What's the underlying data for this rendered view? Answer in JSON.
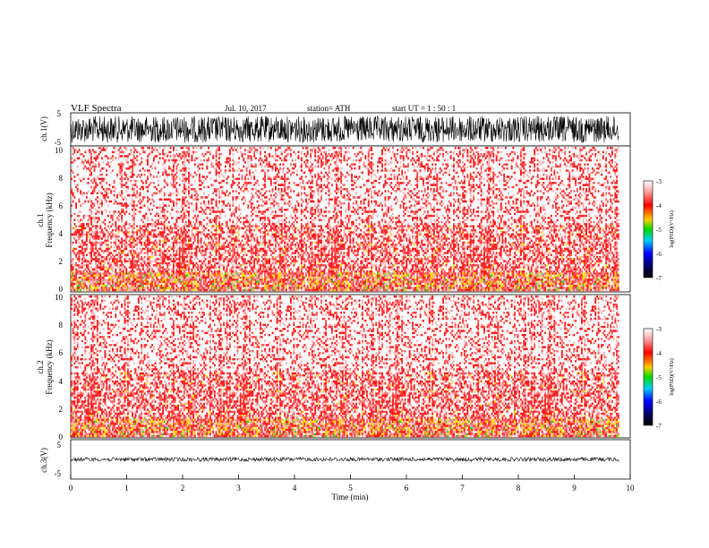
{
  "header": {
    "title": "VLF  Spectra",
    "date": "Jul.  10, 2017",
    "station": "station= ATH",
    "start_ut": "start  UT  =    1 : 50 : 1"
  },
  "chart_data": [
    {
      "type": "line",
      "panel": "ch1-waveform",
      "ylabel": "ch.1(V)",
      "ylim": [
        -5,
        5
      ],
      "yticks": [
        "5",
        "-5"
      ],
      "xlim": [
        0,
        10
      ],
      "envelope": [
        -4,
        4
      ],
      "color": "#000000"
    },
    {
      "type": "heatmap",
      "panel": "ch1-spectrogram",
      "ylabel_channel": "ch.1",
      "ylabel": "Frequency (kHz)",
      "ylim": [
        0,
        10
      ],
      "yticks": [
        "0",
        "2",
        "4",
        "6",
        "8",
        "10"
      ],
      "xlim": [
        0,
        9.8
      ],
      "colorbar": {
        "label": "log(PSD)(V²/Hz)",
        "range": [
          -7,
          -3
        ],
        "ticks": [
          "-3",
          "-4",
          "-5",
          "-6",
          "-7"
        ]
      }
    },
    {
      "type": "heatmap",
      "panel": "ch2-spectrogram",
      "ylabel_channel": "ch.2",
      "ylabel": "Frequency (kHz)",
      "ylim": [
        0,
        10
      ],
      "yticks": [
        "0",
        "2",
        "4",
        "6",
        "8",
        "10"
      ],
      "xlim": [
        0,
        9.8
      ],
      "colorbar": {
        "label": "log(PSD)(V²/Hz)",
        "range": [
          -7,
          -3
        ],
        "ticks": [
          "-3",
          "-4",
          "-5",
          "-6",
          "-7"
        ]
      }
    },
    {
      "type": "line",
      "panel": "ch3-waveform",
      "ylabel": "ch.3(V)",
      "ylim": [
        -5,
        5
      ],
      "yticks": [
        "5",
        "-5"
      ],
      "xlim": [
        0,
        10
      ],
      "envelope": [
        -0.5,
        0.5
      ],
      "color": "#000000"
    }
  ],
  "xaxis": {
    "label": "Time  (min)",
    "ticks": [
      "0",
      "1",
      "2",
      "3",
      "4",
      "5",
      "6",
      "7",
      "8",
      "9",
      "10"
    ]
  }
}
